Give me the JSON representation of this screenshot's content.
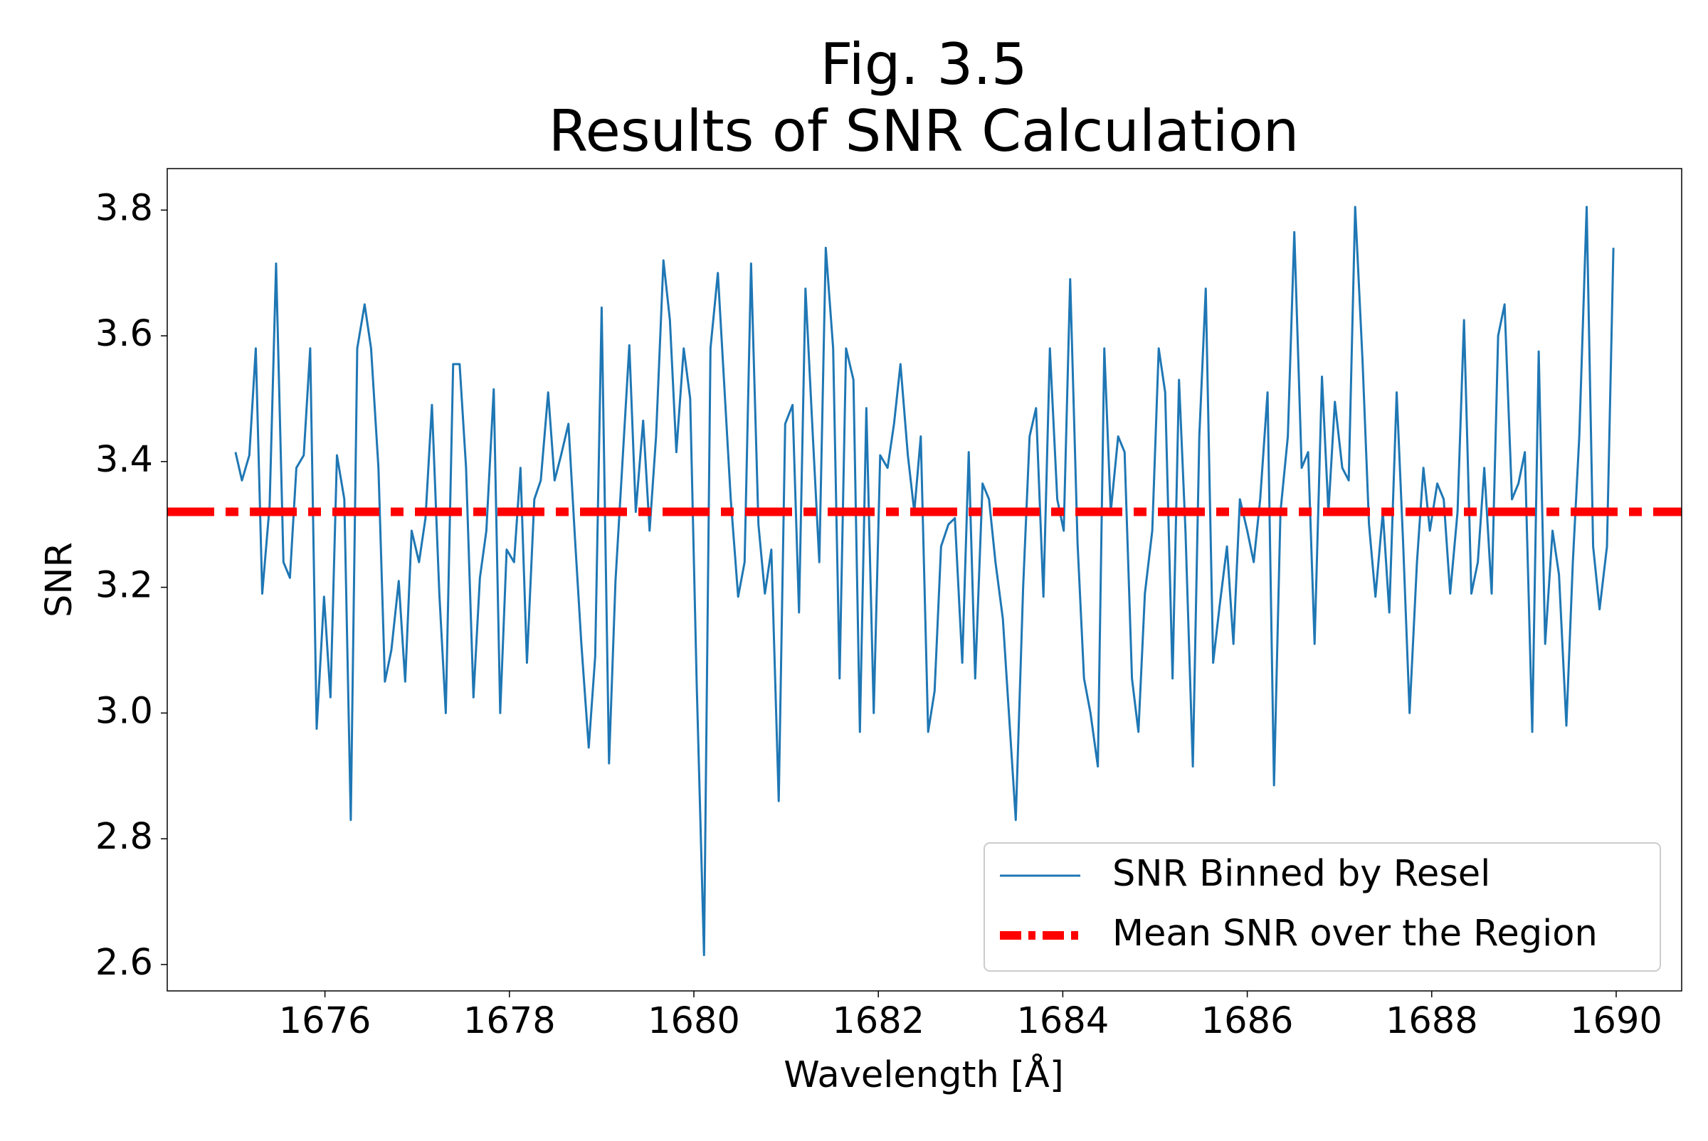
{
  "chart_data": {
    "type": "line",
    "title": [
      "Fig. 3.5",
      "Results of SNR Calculation"
    ],
    "x_label": "Wavelength [Å]",
    "y_label": "SNR",
    "x": [
      1675.03,
      1675.1,
      1675.18,
      1675.25,
      1675.32,
      1675.4,
      1675.47,
      1675.55,
      1675.62,
      1675.69,
      1675.77,
      1675.84,
      1675.91,
      1675.99,
      1676.06,
      1676.13,
      1676.21,
      1676.28,
      1676.35,
      1676.43,
      1676.5,
      1676.58,
      1676.65,
      1676.72,
      1676.8,
      1676.87,
      1676.94,
      1677.02,
      1677.09,
      1677.16,
      1677.24,
      1677.31,
      1677.39,
      1677.46,
      1677.53,
      1677.61,
      1677.68,
      1677.75,
      1677.83,
      1677.9,
      1677.97,
      1678.05,
      1678.12,
      1678.19,
      1678.27,
      1678.34,
      1678.42,
      1678.49,
      1678.56,
      1678.64,
      1678.71,
      1678.78,
      1678.86,
      1678.93,
      1679.0,
      1679.08,
      1679.15,
      1679.23,
      1679.3,
      1679.37,
      1679.45,
      1679.52,
      1679.59,
      1679.67,
      1679.74,
      1679.81,
      1679.89,
      1679.96,
      1680.03,
      1680.11,
      1680.18,
      1680.26,
      1680.33,
      1680.4,
      1680.48,
      1680.55,
      1680.62,
      1680.7,
      1680.77,
      1680.84,
      1680.92,
      1680.99,
      1681.07,
      1681.14,
      1681.21,
      1681.29,
      1681.36,
      1681.43,
      1681.51,
      1681.58,
      1681.65,
      1681.73,
      1681.8,
      1681.87,
      1681.95,
      1682.02,
      1682.1,
      1682.17,
      1682.24,
      1682.32,
      1682.39,
      1682.46,
      1682.54,
      1682.61,
      1682.68,
      1682.76,
      1682.83,
      1682.91,
      1682.98,
      1683.05,
      1683.13,
      1683.2,
      1683.27,
      1683.35,
      1683.42,
      1683.49,
      1683.57,
      1683.64,
      1683.71,
      1683.79,
      1683.86,
      1683.94,
      1684.01,
      1684.08,
      1684.16,
      1684.23,
      1684.3,
      1684.38,
      1684.45,
      1684.52,
      1684.6,
      1684.67,
      1684.75,
      1684.82,
      1684.89,
      1684.97,
      1685.04,
      1685.11,
      1685.19,
      1685.26,
      1685.33,
      1685.41,
      1685.48,
      1685.55,
      1685.63,
      1685.7,
      1685.78,
      1685.85,
      1685.92,
      1686.0,
      1686.07,
      1686.14,
      1686.22,
      1686.29,
      1686.36,
      1686.44,
      1686.51,
      1686.59,
      1686.66,
      1686.73,
      1686.81,
      1686.88,
      1686.95,
      1687.03,
      1687.1,
      1687.17,
      1687.25,
      1687.32,
      1687.39,
      1687.47,
      1687.54,
      1687.62,
      1687.69,
      1687.76,
      1687.84,
      1687.91,
      1687.98,
      1688.06,
      1688.13,
      1688.2,
      1688.28,
      1688.35,
      1688.43,
      1688.5,
      1688.57,
      1688.65,
      1688.72,
      1688.79,
      1688.87,
      1688.94,
      1689.01,
      1689.09,
      1689.16,
      1689.23,
      1689.31,
      1689.38,
      1689.46,
      1689.53,
      1689.6,
      1689.68,
      1689.75,
      1689.82,
      1689.9,
      1689.97
    ],
    "series": [
      {
        "name": "SNR Binned by Resel",
        "color": "#1f77b4",
        "values": [
          3.415,
          3.37,
          3.41,
          3.58,
          3.19,
          3.33,
          3.715,
          3.24,
          3.215,
          3.39,
          3.41,
          3.58,
          2.975,
          3.185,
          3.025,
          3.41,
          3.34,
          2.83,
          3.58,
          3.65,
          3.58,
          3.39,
          3.05,
          3.1,
          3.21,
          3.05,
          3.29,
          3.24,
          3.31,
          3.49,
          3.19,
          3.0,
          3.555,
          3.555,
          3.39,
          3.025,
          3.215,
          3.29,
          3.515,
          3.0,
          3.26,
          3.24,
          3.39,
          3.08,
          3.34,
          3.37,
          3.51,
          3.37,
          3.41,
          3.46,
          3.28,
          3.11,
          2.945,
          3.09,
          3.645,
          2.92,
          3.21,
          3.41,
          3.585,
          3.32,
          3.465,
          3.29,
          3.44,
          3.72,
          3.625,
          3.415,
          3.58,
          3.5,
          3.05,
          2.615,
          3.58,
          3.7,
          3.52,
          3.34,
          3.185,
          3.24,
          3.715,
          3.3,
          3.19,
          3.26,
          2.86,
          3.46,
          3.49,
          3.16,
          3.675,
          3.44,
          3.24,
          3.74,
          3.58,
          3.055,
          3.58,
          3.53,
          2.97,
          3.485,
          3.0,
          3.41,
          3.39,
          3.46,
          3.555,
          3.41,
          3.32,
          3.44,
          2.97,
          3.035,
          3.265,
          3.3,
          3.31,
          3.08,
          3.415,
          3.055,
          3.365,
          3.34,
          3.24,
          3.15,
          2.99,
          2.83,
          3.2,
          3.44,
          3.485,
          3.185,
          3.58,
          3.34,
          3.29,
          3.69,
          3.27,
          3.055,
          3.0,
          2.915,
          3.58,
          3.32,
          3.44,
          3.415,
          3.055,
          2.97,
          3.19,
          3.29,
          3.58,
          3.51,
          3.055,
          3.53,
          3.29,
          2.915,
          3.44,
          3.675,
          3.08,
          3.17,
          3.265,
          3.11,
          3.34,
          3.29,
          3.24,
          3.34,
          3.51,
          2.885,
          3.32,
          3.44,
          3.765,
          3.39,
          3.415,
          3.11,
          3.535,
          3.32,
          3.495,
          3.39,
          3.37,
          3.805,
          3.56,
          3.3,
          3.185,
          3.32,
          3.16,
          3.51,
          3.27,
          3.0,
          3.24,
          3.39,
          3.29,
          3.365,
          3.34,
          3.19,
          3.32,
          3.625,
          3.19,
          3.24,
          3.39,
          3.19,
          3.6,
          3.65,
          3.34,
          3.365,
          3.415,
          2.97,
          3.575,
          3.11,
          3.29,
          3.22,
          2.98,
          3.24,
          3.44,
          3.805,
          3.265,
          3.165,
          3.265,
          3.74
        ]
      }
    ],
    "mean_line": {
      "name": "Mean SNR over the Region",
      "value": 3.32,
      "color": "#ff0000"
    },
    "xlim": [
      1674.29,
      1690.71
    ],
    "ylim": [
      2.558,
      3.866
    ],
    "xticks": [
      1676,
      1678,
      1680,
      1682,
      1684,
      1686,
      1688,
      1690
    ],
    "yticks": [
      2.6,
      2.8,
      {
        "value": 3,
        "label": "3.0"
      },
      3.2,
      3.4,
      3.6,
      3.8
    ],
    "grid": false,
    "legend": "lower right"
  }
}
